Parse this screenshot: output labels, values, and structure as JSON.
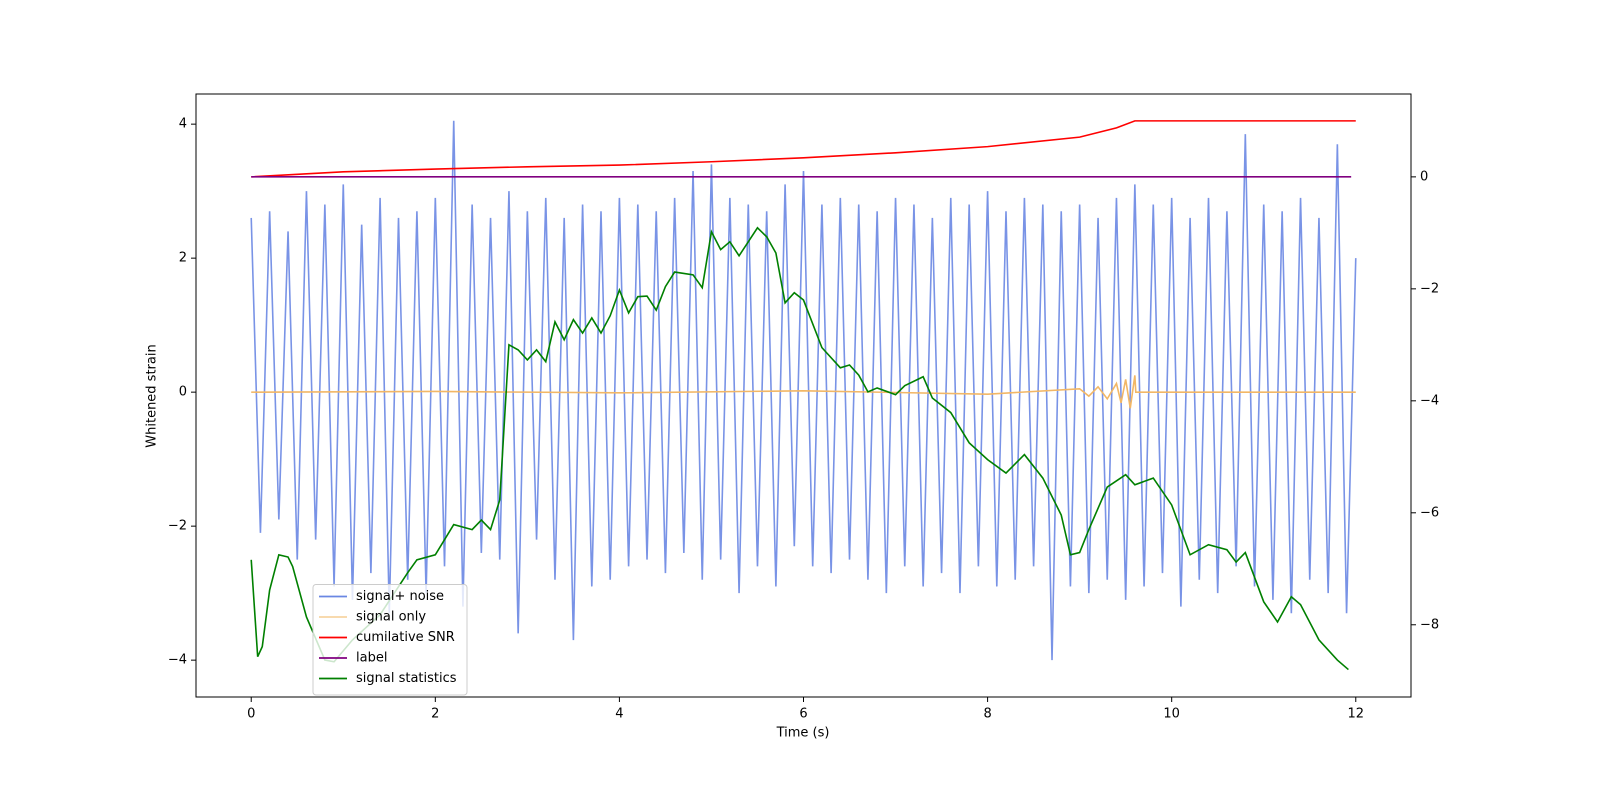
{
  "chart_data": {
    "type": "line",
    "xlabel": "Time (s)",
    "ylabel": "Whitened strain",
    "xlim": [
      -0.6,
      12.6
    ],
    "xticks": [
      0,
      2,
      4,
      6,
      8,
      10,
      12
    ],
    "ylim": [
      -4.55,
      4.45
    ],
    "yticks": [
      {
        "value": -4,
        "label": "−4"
      },
      {
        "value": -2,
        "label": "−2"
      },
      0,
      2,
      4
    ],
    "y2lim": [
      -9.29,
      1.48
    ],
    "y2ticks": [
      {
        "value": -8,
        "label": "−8"
      },
      {
        "value": -6,
        "label": "−6"
      },
      {
        "value": -4,
        "label": "−4"
      },
      {
        "value": -2,
        "label": "−2"
      },
      0
    ],
    "legend": "lower left",
    "series": [
      {
        "name": "signal+ noise",
        "color": "#6a87e3",
        "x": [
          0,
          0.1,
          0.2,
          0.3,
          0.4,
          0.5,
          0.6,
          0.7,
          0.8,
          0.9,
          1,
          1.1,
          1.2,
          1.3,
          1.4,
          1.5,
          1.6,
          1.7,
          1.8,
          1.9,
          2,
          2.1,
          2.2,
          2.3,
          2.4,
          2.5,
          2.6,
          2.7,
          2.8,
          2.9,
          3,
          3.1,
          3.2,
          3.3,
          3.4,
          3.5,
          3.6,
          3.7,
          3.8,
          3.9,
          4,
          4.1,
          4.2,
          4.3,
          4.4,
          4.5,
          4.6,
          4.7,
          4.8,
          4.9,
          5,
          5.1,
          5.2,
          5.3,
          5.4,
          5.5,
          5.6,
          5.7,
          5.8,
          5.9,
          6,
          6.1,
          6.2,
          6.3,
          6.4,
          6.5,
          6.6,
          6.7,
          6.8,
          6.9,
          7,
          7.1,
          7.2,
          7.3,
          7.4,
          7.5,
          7.6,
          7.7,
          7.8,
          7.9,
          8,
          8.1,
          8.2,
          8.3,
          8.4,
          8.5,
          8.6,
          8.7,
          8.8,
          8.9,
          9,
          9.1,
          9.2,
          9.3,
          9.4,
          9.5,
          9.6,
          9.7,
          9.8,
          9.9,
          10,
          10.1,
          10.2,
          10.3,
          10.4,
          10.5,
          10.6,
          10.7,
          10.8,
          10.9,
          11,
          11.1,
          11.2,
          11.3,
          11.4,
          11.5,
          11.6,
          11.7,
          11.8,
          11.9,
          12
        ],
        "values": [
          2.6,
          -2.1,
          2.7,
          -1.9,
          2.4,
          -2.5,
          3.0,
          -2.2,
          2.8,
          -2.9,
          3.1,
          -3.1,
          2.5,
          -2.7,
          2.9,
          -3.3,
          2.6,
          -2.8,
          2.7,
          -3.0,
          2.9,
          -2.6,
          4.05,
          -3.2,
          2.8,
          -2.4,
          2.6,
          -2.5,
          3.0,
          -3.6,
          2.7,
          -2.2,
          2.9,
          -2.8,
          2.6,
          -3.7,
          2.8,
          -2.9,
          2.7,
          -2.8,
          2.9,
          -2.6,
          2.8,
          -2.5,
          2.7,
          -2.7,
          2.9,
          -2.4,
          3.3,
          -2.8,
          3.4,
          -2.5,
          2.9,
          -3.0,
          2.8,
          -2.6,
          2.7,
          -2.9,
          3.1,
          -2.3,
          3.3,
          -2.6,
          2.8,
          -2.7,
          2.9,
          -2.5,
          2.8,
          -2.8,
          2.7,
          -3.0,
          2.9,
          -2.6,
          2.8,
          -2.9,
          2.6,
          -2.7,
          2.9,
          -3.0,
          2.8,
          -2.6,
          3.0,
          -2.9,
          2.7,
          -2.8,
          2.9,
          -2.6,
          2.8,
          -4.0,
          2.7,
          -2.9,
          2.8,
          -3.0,
          2.6,
          -2.8,
          2.9,
          -3.1,
          3.1,
          -2.9,
          2.8,
          -2.7,
          2.9,
          -3.2,
          2.6,
          -2.8,
          2.9,
          -3.0,
          2.7,
          -2.6,
          3.85,
          -2.9,
          2.8,
          -3.1,
          2.7,
          -3.3,
          2.9,
          -2.8,
          2.6,
          -3.0,
          3.7,
          -3.3,
          2.0
        ]
      },
      {
        "name": "signal only",
        "color": "#f2b766",
        "x": [
          0,
          2,
          4,
          6,
          8,
          9,
          9.1,
          9.2,
          9.3,
          9.4,
          9.45,
          9.5,
          9.55,
          9.6,
          9.61,
          12
        ],
        "values": [
          0,
          0.01,
          -0.01,
          0.02,
          -0.03,
          0.05,
          -0.06,
          0.08,
          -0.1,
          0.13,
          -0.16,
          0.19,
          -0.24,
          0.25,
          0,
          0
        ]
      },
      {
        "name": "cumilative SNR",
        "color": "#ff0000",
        "axis": "y2",
        "x": [
          0,
          1,
          2,
          3,
          4,
          5,
          6,
          7,
          8,
          9,
          9.4,
          9.6,
          12
        ],
        "values": [
          0,
          0.09,
          0.14,
          0.18,
          0.21,
          0.27,
          0.34,
          0.43,
          0.54,
          0.71,
          0.875,
          1.0,
          1.0
        ]
      },
      {
        "name": "label",
        "color": "#800080",
        "axis": "y2",
        "x": [
          0,
          11.95
        ],
        "values": [
          0,
          0
        ]
      },
      {
        "name": "signal statistics",
        "color": "#008000",
        "axis": "y2",
        "x": [
          0,
          0.07,
          0.12,
          0.2,
          0.3,
          0.4,
          0.45,
          0.6,
          0.8,
          0.9,
          1.1,
          1.4,
          1.7,
          1.8,
          2.0,
          2.2,
          2.4,
          2.5,
          2.6,
          2.7,
          2.8,
          2.9,
          3.0,
          3.1,
          3.2,
          3.3,
          3.4,
          3.5,
          3.6,
          3.7,
          3.8,
          3.9,
          4.0,
          4.1,
          4.2,
          4.3,
          4.4,
          4.5,
          4.6,
          4.8,
          4.9,
          5.0,
          5.1,
          5.2,
          5.3,
          5.4,
          5.5,
          5.6,
          5.7,
          5.8,
          5.9,
          6.0,
          6.2,
          6.4,
          6.5,
          6.6,
          6.7,
          6.8,
          7.0,
          7.1,
          7.3,
          7.4,
          7.6,
          7.8,
          8.0,
          8.2,
          8.4,
          8.6,
          8.8,
          8.9,
          9.0,
          9.1,
          9.3,
          9.5,
          9.6,
          9.8,
          10.0,
          10.2,
          10.4,
          10.6,
          10.7,
          10.8,
          11.0,
          11.15,
          11.3,
          11.4,
          11.6,
          11.8,
          11.92
        ],
        "values": [
          -6.84,
          -8.57,
          -8.39,
          -7.38,
          -6.75,
          -6.79,
          -6.96,
          -7.86,
          -8.63,
          -8.66,
          -8.27,
          -7.82,
          -7.07,
          -6.84,
          -6.75,
          -6.21,
          -6.3,
          -6.13,
          -6.3,
          -5.77,
          -3.0,
          -3.09,
          -3.27,
          -3.09,
          -3.3,
          -2.59,
          -2.91,
          -2.55,
          -2.79,
          -2.52,
          -2.79,
          -2.48,
          -2.02,
          -2.43,
          -2.14,
          -2.13,
          -2.38,
          -1.96,
          -1.7,
          -1.75,
          -1.98,
          -0.98,
          -1.3,
          -1.16,
          -1.41,
          -1.16,
          -0.91,
          -1.07,
          -1.36,
          -2.25,
          -2.07,
          -2.2,
          -3.05,
          -3.41,
          -3.36,
          -3.54,
          -3.84,
          -3.77,
          -3.89,
          -3.73,
          -3.57,
          -3.95,
          -4.21,
          -4.75,
          -5.05,
          -5.29,
          -4.96,
          -5.38,
          -6.04,
          -6.75,
          -6.71,
          -6.3,
          -5.54,
          -5.32,
          -5.5,
          -5.38,
          -5.86,
          -6.75,
          -6.57,
          -6.66,
          -6.88,
          -6.71,
          -7.59,
          -7.95,
          -7.5,
          -7.64,
          -8.27,
          -8.63,
          -8.8
        ]
      }
    ]
  }
}
